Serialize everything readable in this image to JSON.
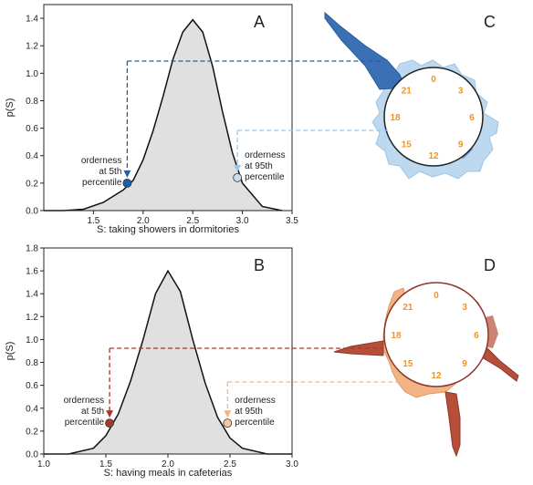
{
  "chart_data": [
    {
      "type": "area",
      "panel_label": "A",
      "xlabel": "S: taking showers in dormitories",
      "ylabel": "p(S)",
      "xlim": [
        1.0,
        3.5
      ],
      "ylim": [
        0.0,
        1.5
      ],
      "xticks": [
        1.5,
        2.0,
        2.5,
        3.0,
        3.5
      ],
      "yticks": [
        0.0,
        0.2,
        0.4,
        0.6,
        0.8,
        1.0,
        1.2,
        1.4
      ],
      "xtick_labels": [
        "1.5",
        "2.0",
        "2.5",
        "3.0",
        "3.5"
      ],
      "ytick_labels": [
        "0.0",
        "0.2",
        "0.4",
        "0.6",
        "0.8",
        "1.0",
        "1.2",
        "1.4"
      ],
      "curve": {
        "x": [
          1.0,
          1.2,
          1.4,
          1.6,
          1.8,
          1.9,
          2.0,
          2.1,
          2.2,
          2.3,
          2.4,
          2.5,
          2.6,
          2.7,
          2.8,
          2.9,
          3.0,
          3.2,
          3.4
        ],
        "y": [
          0.0,
          0.0,
          0.01,
          0.06,
          0.15,
          0.22,
          0.37,
          0.58,
          0.83,
          1.1,
          1.3,
          1.39,
          1.3,
          1.05,
          0.72,
          0.42,
          0.2,
          0.03,
          0.0
        ]
      },
      "percentile_points": [
        {
          "x": 1.84,
          "y": 0.2,
          "color": "#1f5fa8",
          "text": [
            "orderness",
            "at 5th",
            "percentile"
          ]
        },
        {
          "x": 2.95,
          "y": 0.24,
          "color": "#c6dff0",
          "text": [
            "orderness",
            "at 95th",
            "percentile"
          ]
        }
      ]
    },
    {
      "type": "area",
      "panel_label": "B",
      "xlabel": "S: having meals in cafeterias",
      "ylabel": "p(S)",
      "xlim": [
        1.0,
        3.0
      ],
      "ylim": [
        0.0,
        1.8
      ],
      "xticks": [
        1.0,
        1.5,
        2.0,
        2.5,
        3.0
      ],
      "yticks": [
        0.0,
        0.2,
        0.4,
        0.6,
        0.8,
        1.0,
        1.2,
        1.4,
        1.6,
        1.8
      ],
      "xtick_labels": [
        "1.0",
        "1.5",
        "2.0",
        "2.5",
        "3.0"
      ],
      "ytick_labels": [
        "0.0",
        "0.2",
        "0.4",
        "0.6",
        "0.8",
        "1.0",
        "1.2",
        "1.4",
        "1.6",
        "1.8"
      ],
      "curve": {
        "x": [
          1.0,
          1.2,
          1.4,
          1.5,
          1.6,
          1.7,
          1.8,
          1.9,
          2.0,
          2.1,
          2.2,
          2.3,
          2.4,
          2.5,
          2.6,
          2.8,
          3.0
        ],
        "y": [
          0.0,
          0.0,
          0.05,
          0.16,
          0.35,
          0.64,
          1.0,
          1.4,
          1.6,
          1.42,
          1.0,
          0.62,
          0.32,
          0.14,
          0.05,
          0.0,
          0.0
        ]
      },
      "percentile_points": [
        {
          "x": 1.53,
          "y": 0.27,
          "color": "#a33a2a",
          "text": [
            "orderness",
            "at 5th",
            "percentile"
          ]
        },
        {
          "x": 2.48,
          "y": 0.27,
          "color": "#f4c7a5",
          "text": [
            "orderness",
            "at 95th",
            "percentile"
          ]
        }
      ]
    }
  ],
  "clock_panels": [
    {
      "label": "C",
      "hours": [
        "0",
        "3",
        "6",
        "9",
        "12",
        "15",
        "18",
        "21"
      ],
      "dark_color": "#3b70b6",
      "light_color": "#bcd9ef"
    },
    {
      "label": "D",
      "hours": [
        "0",
        "3",
        "6",
        "9",
        "12",
        "15",
        "18",
        "21"
      ],
      "dark_color": "#b54f3a",
      "light_color": "#f0b486"
    }
  ]
}
